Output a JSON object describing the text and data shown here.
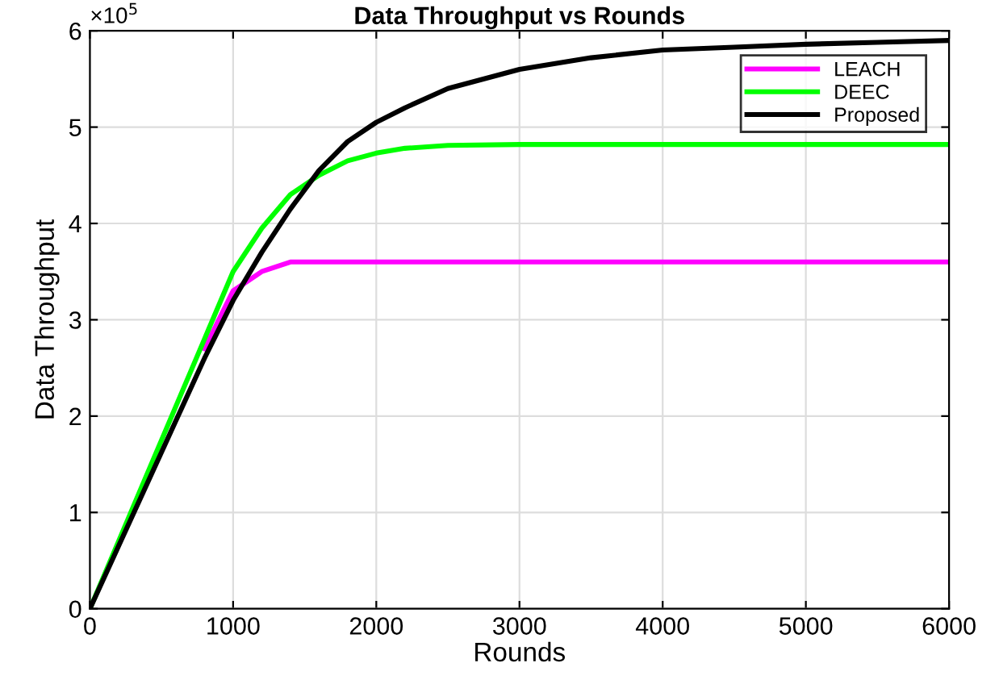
{
  "chart_data": {
    "type": "line",
    "title": "Data Throughput vs Rounds",
    "xlabel": "Rounds",
    "ylabel": "Data Throughput",
    "x": [
      0,
      200,
      400,
      600,
      800,
      1000,
      1200,
      1400,
      1600,
      1800,
      2000,
      2200,
      2500,
      3000,
      3500,
      4000,
      4500,
      5000,
      5500,
      6000
    ],
    "series": [
      {
        "name": "LEACH",
        "color": "#ff00ff",
        "values": [
          null,
          null,
          null,
          null,
          2.7,
          3.3,
          3.5,
          3.6,
          3.6,
          3.6,
          3.6,
          3.6,
          3.6,
          3.6,
          3.6,
          3.6,
          3.6,
          3.6,
          3.6,
          3.6
        ]
      },
      {
        "name": "DEEC",
        "color": "#00ff00",
        "values": [
          0,
          0.7,
          1.4,
          2.1,
          2.8,
          3.5,
          3.95,
          4.3,
          4.5,
          4.65,
          4.73,
          4.78,
          4.81,
          4.82,
          4.82,
          4.82,
          4.82,
          4.82,
          4.82,
          4.82
        ]
      },
      {
        "name": "Proposed",
        "color": "#000000",
        "values": [
          0,
          0.65,
          1.3,
          1.95,
          2.6,
          3.2,
          3.7,
          4.15,
          4.55,
          4.85,
          5.05,
          5.2,
          5.4,
          5.6,
          5.72,
          5.8,
          5.83,
          5.86,
          5.88,
          5.9
        ]
      }
    ],
    "xlim": [
      0,
      6000
    ],
    "xticks": [
      0,
      1000,
      2000,
      3000,
      4000,
      5000,
      6000
    ],
    "ylim": [
      0,
      6
    ],
    "yticks": [
      0,
      1,
      2,
      3,
      4,
      5,
      6
    ],
    "annotations": [
      "×10$^{5}$"
    ],
    "grid": true,
    "legend": "top right",
    "marker": "none",
    "line_style": "solid"
  }
}
